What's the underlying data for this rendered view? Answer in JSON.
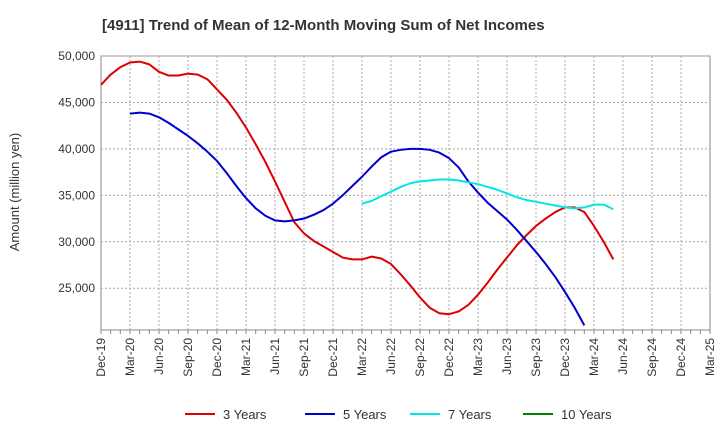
{
  "chart_data": {
    "type": "line",
    "title": "[4911]  Trend of Mean of 12-Month Moving Sum of Net Incomes",
    "ylabel": "Amount (million yen)",
    "xlabel": "",
    "ylim": [
      20500,
      50000
    ],
    "yticks": [
      25000,
      30000,
      35000,
      40000,
      45000,
      50000
    ],
    "ytick_labels": [
      "25,000",
      "30,000",
      "35,000",
      "40,000",
      "45,000",
      "50,000"
    ],
    "x_tick_labels": [
      "Dec-19",
      "Mar-20",
      "Jun-20",
      "Sep-20",
      "Dec-20",
      "Mar-21",
      "Jun-21",
      "Sep-21",
      "Dec-21",
      "Mar-22",
      "Jun-22",
      "Sep-22",
      "Dec-22",
      "Mar-23",
      "Jun-23",
      "Sep-23",
      "Dec-23",
      "Mar-24",
      "Jun-24",
      "Sep-24",
      "Dec-24",
      "Mar-25"
    ],
    "grid": true,
    "legend_position": "bottom",
    "series": [
      {
        "name": "3 Years",
        "color": "#dd0000",
        "values": [
          [
            0,
            46900
          ],
          [
            1,
            48000
          ],
          [
            2,
            48800
          ],
          [
            3,
            49300
          ],
          [
            4,
            49400
          ],
          [
            5,
            49100
          ],
          [
            6,
            48300
          ],
          [
            7,
            47900
          ],
          [
            8,
            47900
          ],
          [
            9,
            48100
          ],
          [
            10,
            48000
          ],
          [
            11,
            47500
          ],
          [
            12,
            46400
          ],
          [
            13,
            45300
          ],
          [
            14,
            43900
          ],
          [
            15,
            42300
          ],
          [
            16,
            40500
          ],
          [
            17,
            38600
          ],
          [
            18,
            36500
          ],
          [
            19,
            34300
          ],
          [
            20,
            32100
          ],
          [
            21,
            30900
          ],
          [
            22,
            30100
          ],
          [
            23,
            29500
          ],
          [
            24,
            28900
          ],
          [
            25,
            28300
          ],
          [
            26,
            28100
          ],
          [
            27,
            28100
          ],
          [
            28,
            28400
          ],
          [
            29,
            28200
          ],
          [
            30,
            27600
          ],
          [
            31,
            26500
          ],
          [
            32,
            25300
          ],
          [
            33,
            24000
          ],
          [
            34,
            22900
          ],
          [
            35,
            22300
          ],
          [
            36,
            22200
          ],
          [
            37,
            22500
          ],
          [
            38,
            23200
          ],
          [
            39,
            24300
          ],
          [
            40,
            25600
          ],
          [
            41,
            27000
          ],
          [
            42,
            28300
          ],
          [
            43,
            29600
          ],
          [
            44,
            30700
          ],
          [
            45,
            31700
          ],
          [
            46,
            32500
          ],
          [
            47,
            33200
          ],
          [
            48,
            33700
          ],
          [
            49,
            33700
          ],
          [
            50,
            33200
          ],
          [
            51,
            31700
          ],
          [
            52,
            30000
          ],
          [
            53,
            28100
          ]
        ]
      },
      {
        "name": "5 Years",
        "color": "#0000cc",
        "values": [
          [
            3,
            43800
          ],
          [
            4,
            43900
          ],
          [
            5,
            43800
          ],
          [
            6,
            43400
          ],
          [
            7,
            42800
          ],
          [
            8,
            42100
          ],
          [
            9,
            41400
          ],
          [
            10,
            40600
          ],
          [
            11,
            39700
          ],
          [
            12,
            38700
          ],
          [
            13,
            37400
          ],
          [
            14,
            36000
          ],
          [
            15,
            34700
          ],
          [
            16,
            33600
          ],
          [
            17,
            32800
          ],
          [
            18,
            32300
          ],
          [
            19,
            32200
          ],
          [
            20,
            32300
          ],
          [
            21,
            32500
          ],
          [
            22,
            32900
          ],
          [
            23,
            33400
          ],
          [
            24,
            34100
          ],
          [
            25,
            35000
          ],
          [
            26,
            36000
          ],
          [
            27,
            37000
          ],
          [
            28,
            38100
          ],
          [
            29,
            39100
          ],
          [
            30,
            39700
          ],
          [
            31,
            39900
          ],
          [
            32,
            40000
          ],
          [
            33,
            40000
          ],
          [
            34,
            39900
          ],
          [
            35,
            39600
          ],
          [
            36,
            39000
          ],
          [
            37,
            38000
          ],
          [
            38,
            36500
          ],
          [
            39,
            35300
          ],
          [
            40,
            34200
          ],
          [
            41,
            33300
          ],
          [
            42,
            32400
          ],
          [
            43,
            31300
          ],
          [
            44,
            30100
          ],
          [
            45,
            28900
          ],
          [
            46,
            27600
          ],
          [
            47,
            26200
          ],
          [
            48,
            24600
          ],
          [
            49,
            22900
          ],
          [
            50,
            21000
          ]
        ]
      },
      {
        "name": "7 Years",
        "color": "#00e6e6",
        "values": [
          [
            27,
            34100
          ],
          [
            28,
            34400
          ],
          [
            29,
            34900
          ],
          [
            30,
            35400
          ],
          [
            31,
            35900
          ],
          [
            32,
            36300
          ],
          [
            33,
            36500
          ],
          [
            34,
            36600
          ],
          [
            35,
            36700
          ],
          [
            36,
            36700
          ],
          [
            37,
            36600
          ],
          [
            38,
            36400
          ],
          [
            39,
            36200
          ],
          [
            40,
            35900
          ],
          [
            41,
            35600
          ],
          [
            42,
            35200
          ],
          [
            43,
            34800
          ],
          [
            44,
            34500
          ],
          [
            45,
            34300
          ],
          [
            46,
            34100
          ],
          [
            47,
            33900
          ],
          [
            48,
            33700
          ],
          [
            49,
            33600
          ],
          [
            50,
            33700
          ],
          [
            51,
            34000
          ],
          [
            52,
            34000
          ],
          [
            53,
            33500
          ]
        ]
      },
      {
        "name": "10 Years",
        "color": "#008000",
        "values": []
      }
    ]
  }
}
